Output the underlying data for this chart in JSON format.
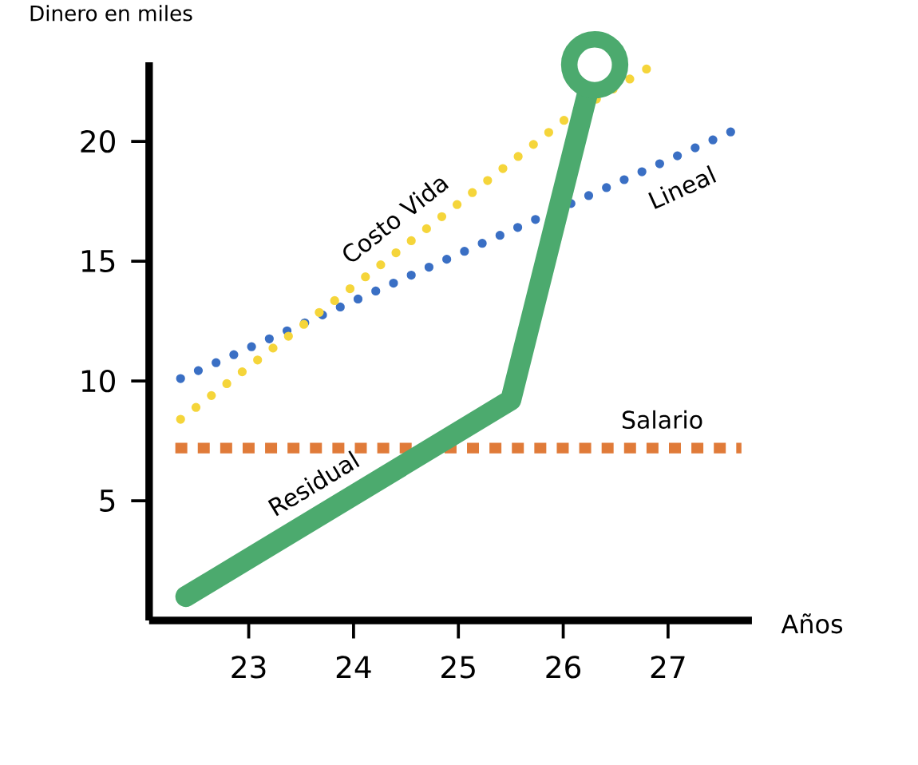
{
  "chart_data": {
    "type": "line",
    "xlabel": "Años",
    "ylabel": "Dinero en miles",
    "xlim": [
      22.05,
      27.8
    ],
    "ylim": [
      0,
      23.3
    ],
    "xticks": [
      23,
      24,
      25,
      26,
      27
    ],
    "yticks": [
      5,
      10,
      15,
      20
    ],
    "grid": false,
    "series": [
      {
        "name": "Salario",
        "color": "#e07b39",
        "line_style": "dashed",
        "x": [
          22.3,
          27.7
        ],
        "values": [
          7.2,
          7.2
        ]
      },
      {
        "name": "Lineal",
        "color": "#3a6fc4",
        "line_style": "dotted",
        "x": [
          22.35,
          27.65
        ],
        "values": [
          10.1,
          20.5
        ]
      },
      {
        "name": "Costo Vida",
        "color": "#f5d53a",
        "line_style": "dotted",
        "x": [
          22.35,
          24.1,
          26.1,
          26.9
        ],
        "values": [
          8.4,
          14.3,
          21.2,
          23.3
        ]
      },
      {
        "name": "Residual",
        "color": "#4caa6e",
        "line_style": "solid",
        "x": [
          22.4,
          25.5,
          26.3
        ],
        "values": [
          1,
          9.2,
          23.2
        ]
      },
      {
        "type": "scatter",
        "marker": "circle",
        "color": "#4caa6e",
        "x": [
          26.3
        ],
        "values": [
          23.2
        ]
      }
    ]
  }
}
